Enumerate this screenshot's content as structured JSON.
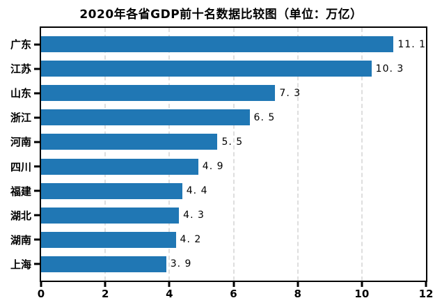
{
  "chart_data": {
    "type": "bar",
    "orientation": "horizontal",
    "title": "2020年各省GDP前十名数据比较图（单位：万亿）",
    "categories": [
      "广东",
      "江苏",
      "山东",
      "浙江",
      "河南",
      "四川",
      "福建",
      "湖北",
      "湖南",
      "上海"
    ],
    "values": [
      11.1,
      10.3,
      7.3,
      6.5,
      5.5,
      4.9,
      4.4,
      4.3,
      4.2,
      3.9
    ],
    "value_labels": [
      "11. 1",
      "10. 3",
      "7. 3",
      "6. 5",
      "5. 5",
      "4. 9",
      "4. 4",
      "4. 3",
      "4. 2",
      "3. 9"
    ],
    "xlabel": "",
    "ylabel": "",
    "xlim": [
      0,
      12
    ],
    "x_ticks": [
      0,
      2,
      4,
      6,
      8,
      10,
      12
    ],
    "x_tick_labels": [
      "0",
      "2",
      "4",
      "6",
      "8",
      "10",
      "12"
    ],
    "grid": "vertical-dashed",
    "legend_position": "none",
    "bar_color": "#2077b4",
    "grid_color": "#dedede",
    "axis_color": "#000000",
    "background_color": "#ffffff"
  }
}
